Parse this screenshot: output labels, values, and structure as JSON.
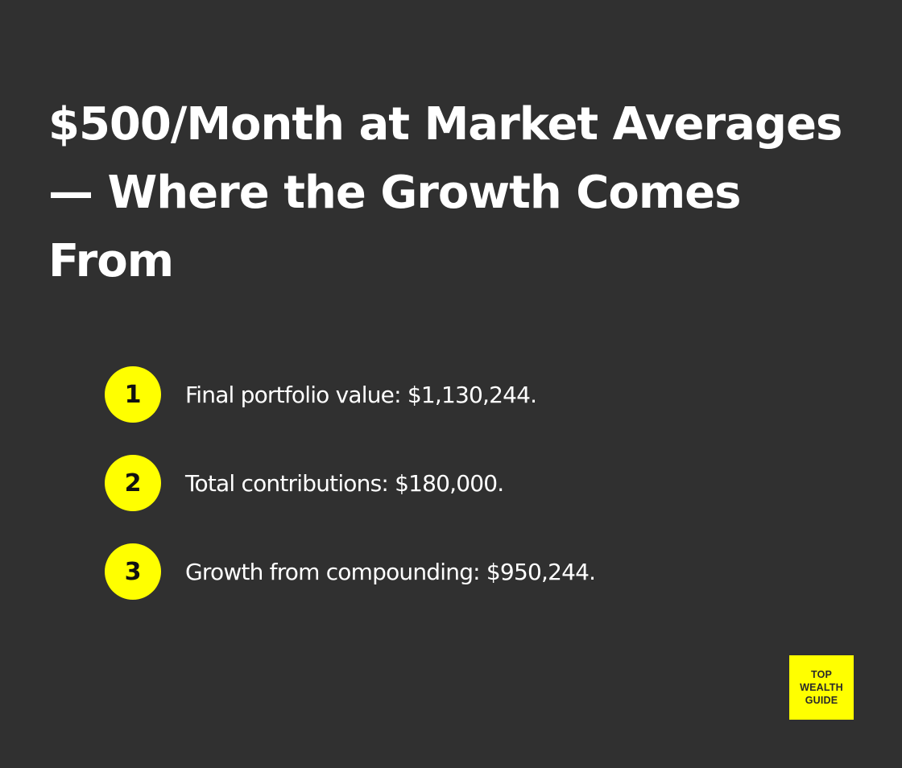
{
  "page": {
    "background_color": "#303030",
    "accent_color": "#ffff00",
    "title": "$500/Month at Market Averages — Where the Growth Comes From"
  },
  "list": {
    "items": [
      {
        "number": "1",
        "text": "Final portfolio value: $1,130,244."
      },
      {
        "number": "2",
        "text": "Total contributions: $180,000."
      },
      {
        "number": "3",
        "text": "Growth from compounding: $950,244."
      }
    ]
  },
  "logo": {
    "lines": [
      "TOP",
      "WEALTH",
      "GUIDE"
    ]
  }
}
